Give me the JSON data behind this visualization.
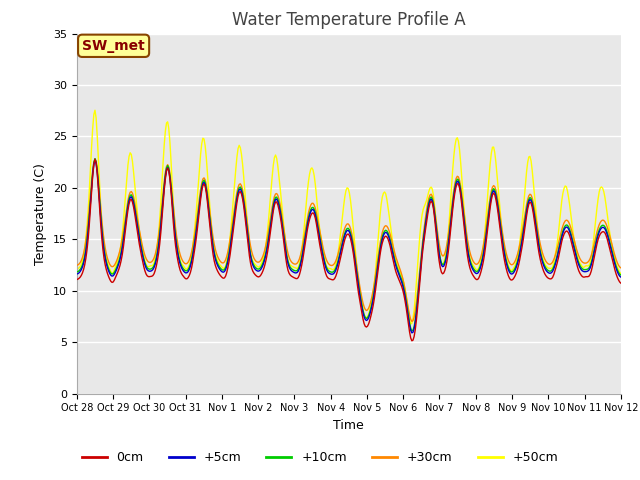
{
  "title": "Water Temperature Profile A",
  "xlabel": "Time",
  "ylabel": "Temperature (C)",
  "ylim": [
    0,
    35
  ],
  "yticks": [
    0,
    5,
    10,
    15,
    20,
    25,
    30,
    35
  ],
  "xlabels": [
    "Oct 28",
    "Oct 29",
    "Oct 30",
    "Oct 31",
    "Nov 1",
    "Nov 2",
    "Nov 3",
    "Nov 4",
    "Nov 5",
    "Nov 6",
    "Nov 7",
    "Nov 8",
    "Nov 9",
    "Nov 10",
    "Nov 11",
    "Nov 12"
  ],
  "legend_labels": [
    "0cm",
    "+5cm",
    "+10cm",
    "+30cm",
    "+50cm"
  ],
  "line_colors": [
    "#cc0000",
    "#0000cc",
    "#00cc00",
    "#ff8800",
    "#ffff00"
  ],
  "bg_color": "#e8e8e8",
  "fig_bg_color": "#ffffff",
  "annotation_text": "SW_met",
  "annotation_color": "#880000",
  "annotation_bg": "#ffff99",
  "annotation_border": "#884400",
  "title_fontsize": 12,
  "axis_fontsize": 9,
  "tick_fontsize": 8,
  "legend_fontsize": 9,
  "n_points": 480
}
